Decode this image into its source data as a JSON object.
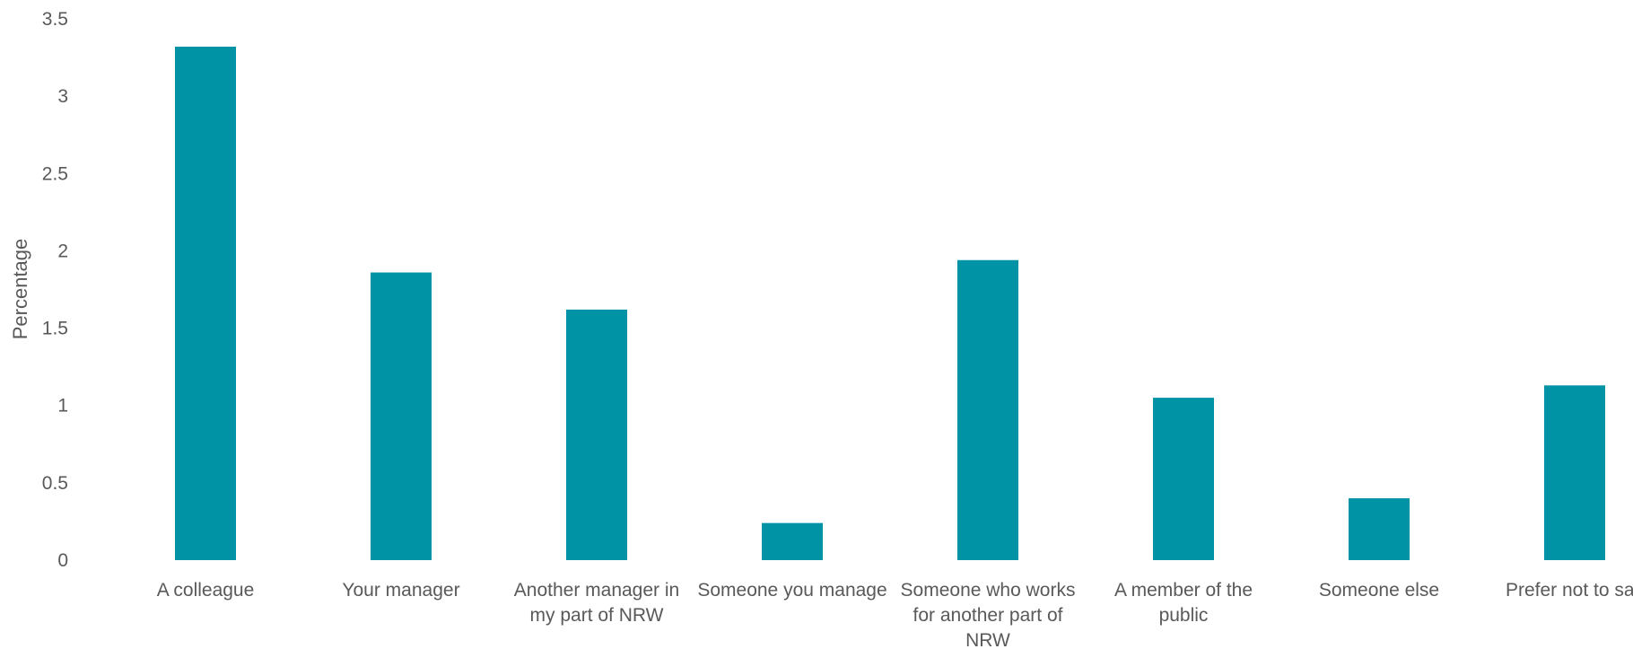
{
  "chart_data": {
    "type": "bar",
    "title": "",
    "xlabel": "",
    "ylabel": "Percentage",
    "categories": [
      "A colleague",
      "Your manager",
      "Another manager in my part of NRW",
      "Someone you manage",
      "Someone who works for another part of NRW",
      "A member of the public",
      "Someone else",
      "Prefer not to say"
    ],
    "category_label_lines": [
      [
        "A colleague"
      ],
      [
        "Your manager"
      ],
      [
        "Another manager in",
        "my part of NRW"
      ],
      [
        "Someone you manage"
      ],
      [
        "Someone who works",
        "for another part of",
        "NRW"
      ],
      [
        "A member of the",
        "public"
      ],
      [
        "Someone else"
      ],
      [
        "Prefer not to say"
      ]
    ],
    "values": [
      3.32,
      1.86,
      1.62,
      0.24,
      1.94,
      1.05,
      0.4,
      1.13
    ],
    "ylim": [
      0,
      3.5
    ],
    "yticks": [
      0,
      0.5,
      1,
      1.5,
      2,
      2.5,
      3,
      3.5
    ],
    "ytick_labels": [
      "0",
      "0.5",
      "1",
      "1.5",
      "2",
      "2.5",
      "3",
      "3.5"
    ],
    "grid": false,
    "legend": "none",
    "bar_color": "#0092A5"
  }
}
